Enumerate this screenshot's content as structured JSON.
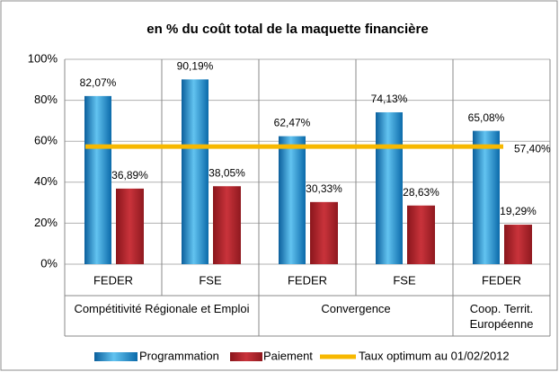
{
  "chart_data": {
    "type": "bar",
    "title": "en % du coût total de la maquette financière",
    "categories": [
      "FEDER",
      "FSE",
      "FEDER",
      "FSE",
      "FEDER"
    ],
    "group_labels": [
      "Compétitivité Régionale et Emploi",
      null,
      "Convergence",
      null,
      "Coop. Territ. Européenne"
    ],
    "series": [
      {
        "name": "Programmation",
        "color": "#1a86c8",
        "values": [
          82.07,
          90.19,
          62.47,
          74.13,
          65.08
        ],
        "value_labels": [
          "82,07%",
          "90,19%",
          "62,47%",
          "74,13%",
          "65,08%"
        ]
      },
      {
        "name": "Paiement",
        "color": "#b3202a",
        "values": [
          36.89,
          38.05,
          30.33,
          28.63,
          19.29
        ],
        "value_labels": [
          "36,89%",
          "38,05%",
          "30,33%",
          "28,63%",
          "19,29%"
        ]
      }
    ],
    "reference_line": {
      "name": "Taux optimum au 01/02/2012",
      "value": 57.4,
      "value_label": "57,40%",
      "color": "#f7b800"
    },
    "ylim": [
      0,
      100
    ],
    "yticks": [
      {
        "value": 0,
        "label": "0%"
      },
      {
        "value": 20,
        "label": "20%"
      },
      {
        "value": 40,
        "label": "40%"
      },
      {
        "value": 60,
        "label": "60%"
      },
      {
        "value": 80,
        "label": "80%"
      },
      {
        "value": 100,
        "label": "100%"
      }
    ],
    "grid": true
  }
}
